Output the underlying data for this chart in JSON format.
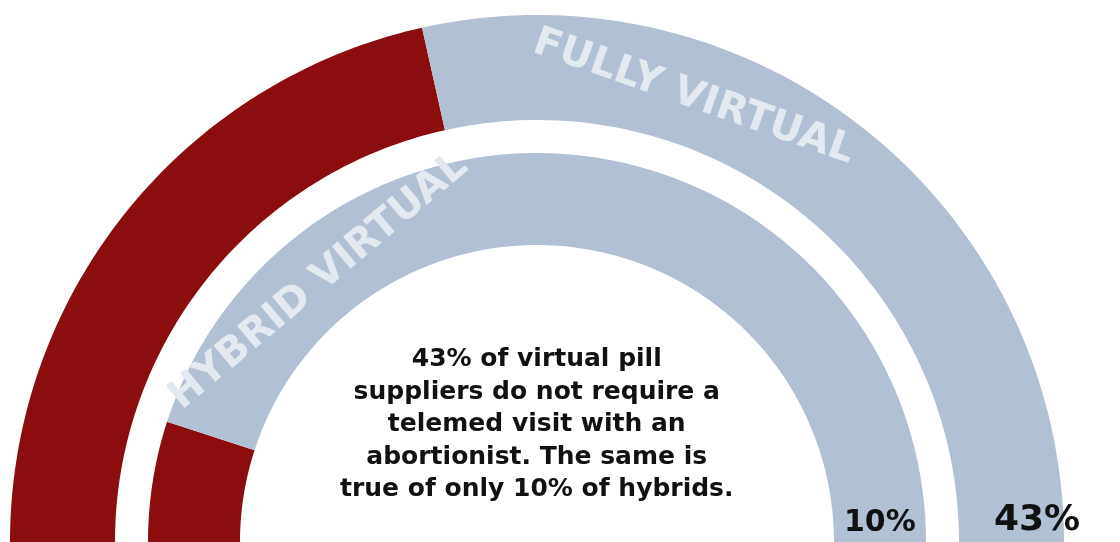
{
  "chart_data": {
    "type": "donut",
    "categories": [
      null,
      null
    ],
    "series": [
      {
        "name": "FULLY VIRTUAL",
        "values": [
          43,
          57
        ],
        "colors": [
          "#8b0d0e",
          "#b1c0d3"
        ]
      },
      {
        "name": "HYBRID VIRTUAL",
        "values": [
          10,
          90
        ],
        "colors": [
          "#8b0d0e",
          "#b1c0d3"
        ]
      }
    ],
    "annotations": [
      "43% of virtual pill suppliers do not require a telemed visit with an abortionist. The same is true of only 10% of hybrids.",
      "43%",
      "10%"
    ]
  }
}
